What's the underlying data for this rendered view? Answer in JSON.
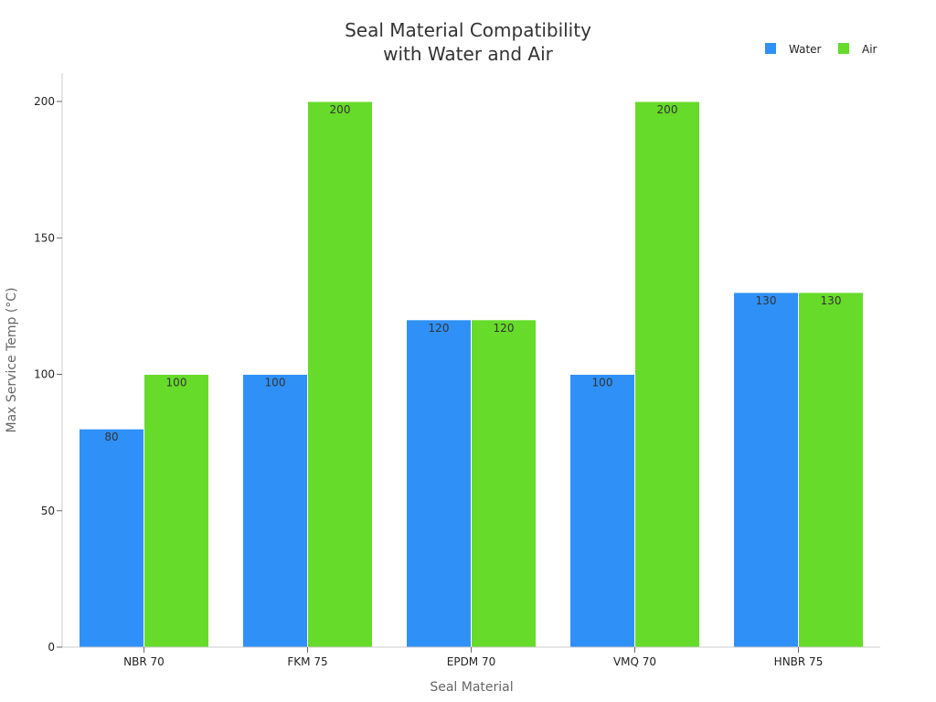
{
  "chart_data": {
    "type": "bar",
    "title_lines": [
      "Seal Material Compatibility",
      "with Water and Air"
    ],
    "xlabel": "Seal Material",
    "ylabel": "Max Service Temp (°C)",
    "categories": [
      "NBR 70",
      "FKM 75",
      "EPDM 70",
      "VMQ 70",
      "HNBR 75"
    ],
    "series": [
      {
        "name": "Water",
        "color": "#2f90f7",
        "values": [
          80,
          100,
          120,
          100,
          130
        ]
      },
      {
        "name": "Air",
        "color": "#66db29",
        "values": [
          100,
          200,
          120,
          200,
          130
        ]
      }
    ],
    "ylim": [
      0,
      210
    ],
    "yticks": [
      0,
      50,
      100,
      150,
      200
    ],
    "grid": false,
    "legend_position": "top-right"
  }
}
